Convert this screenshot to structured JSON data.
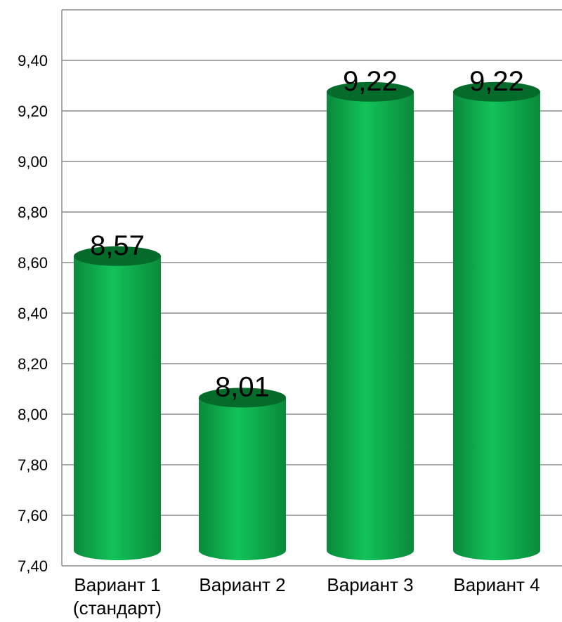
{
  "chart_data": {
    "type": "bar",
    "style": "3d-cylinder",
    "categories": [
      "Вариант 1 (стандарт)",
      "Вариант 2",
      "Вариант 3",
      "Вариант 4"
    ],
    "category_lines": [
      [
        "Вариант 1",
        "(стандарт)"
      ],
      [
        "Вариант 2"
      ],
      [
        "Вариант 3"
      ],
      [
        "Вариант 4"
      ]
    ],
    "values": [
      8.57,
      8.01,
      9.22,
      9.22
    ],
    "value_labels": [
      "8,57",
      "8,01",
      "9,22",
      "9,22"
    ],
    "y_ticks": [
      7.4,
      7.6,
      7.8,
      8.0,
      8.2,
      8.4,
      8.6,
      8.8,
      9.0,
      9.2,
      9.4
    ],
    "y_tick_labels": [
      "7,40",
      "7,60",
      "7,80",
      "8,00",
      "8,20",
      "8,40",
      "8,60",
      "8,80",
      "9,00",
      "9,20",
      "9,40"
    ],
    "ylim": [
      7.4,
      9.6
    ],
    "grid": true,
    "legend": "none",
    "bar_color": "#0da84a",
    "bar_dark_color": "#056b2b",
    "title": "",
    "xlabel": "",
    "ylabel": ""
  }
}
